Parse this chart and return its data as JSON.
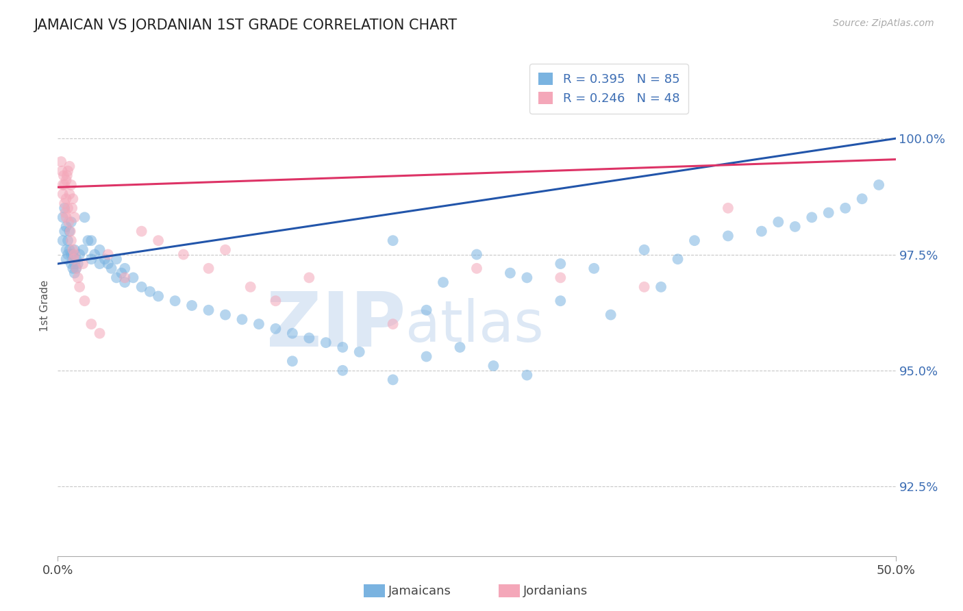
{
  "title": "JAMAICAN VS JORDANIAN 1ST GRADE CORRELATION CHART",
  "source": "Source: ZipAtlas.com",
  "ylabel_label": "1st Grade",
  "yticks": [
    92.5,
    95.0,
    97.5,
    100.0
  ],
  "xlim": [
    0.0,
    50.0
  ],
  "ylim": [
    91.0,
    101.8
  ],
  "legend_blue_label": "Jamaicans",
  "legend_pink_label": "Jordanians",
  "R_blue": 0.395,
  "N_blue": 85,
  "R_pink": 0.246,
  "N_pink": 48,
  "blue_color": "#7ab3e0",
  "pink_color": "#f4a7b9",
  "blue_line_color": "#2255aa",
  "pink_line_color": "#dd3366",
  "axis_label_color": "#3d6eb4",
  "background_color": "#ffffff",
  "watermark_color": "#dde8f5",
  "blue_line_x0": 0.0,
  "blue_line_y0": 97.3,
  "blue_line_x1": 50.0,
  "blue_line_y1": 100.0,
  "pink_line_x0": 0.0,
  "pink_line_y0": 98.95,
  "pink_line_x1": 50.0,
  "pink_line_y1": 99.55,
  "blue_x": [
    0.3,
    0.3,
    0.4,
    0.4,
    0.5,
    0.5,
    0.5,
    0.6,
    0.6,
    0.7,
    0.7,
    0.8,
    0.8,
    0.8,
    0.9,
    0.9,
    1.0,
    1.0,
    1.0,
    1.1,
    1.1,
    1.2,
    1.3,
    1.5,
    1.6,
    1.8,
    2.0,
    2.0,
    2.2,
    2.5,
    2.5,
    2.8,
    3.0,
    3.2,
    3.5,
    3.5,
    3.8,
    4.0,
    4.0,
    4.5,
    5.0,
    5.5,
    6.0,
    7.0,
    8.0,
    9.0,
    10.0,
    11.0,
    12.0,
    13.0,
    14.0,
    15.0,
    16.0,
    17.0,
    18.0,
    20.0,
    22.0,
    23.0,
    25.0,
    27.0,
    28.0,
    30.0,
    32.0,
    35.0,
    37.0,
    38.0,
    40.0,
    42.0,
    43.0,
    44.0,
    45.0,
    46.0,
    47.0,
    48.0,
    49.0,
    14.0,
    17.0,
    20.0,
    22.0,
    24.0,
    26.0,
    28.0,
    30.0,
    33.0,
    36.0
  ],
  "blue_y": [
    97.8,
    98.3,
    98.0,
    98.5,
    97.6,
    98.1,
    97.4,
    97.8,
    97.5,
    97.6,
    98.0,
    97.5,
    98.2,
    97.3,
    97.2,
    97.5,
    97.3,
    97.6,
    97.1,
    97.4,
    97.2,
    97.3,
    97.5,
    97.6,
    98.3,
    97.8,
    97.4,
    97.8,
    97.5,
    97.6,
    97.3,
    97.4,
    97.3,
    97.2,
    97.0,
    97.4,
    97.1,
    96.9,
    97.2,
    97.0,
    96.8,
    96.7,
    96.6,
    96.5,
    96.4,
    96.3,
    96.2,
    96.1,
    96.0,
    95.9,
    95.8,
    95.7,
    95.6,
    95.5,
    95.4,
    97.8,
    96.3,
    96.9,
    97.5,
    97.1,
    97.0,
    97.3,
    97.2,
    97.6,
    97.4,
    97.8,
    97.9,
    98.0,
    98.2,
    98.1,
    98.3,
    98.4,
    98.5,
    98.7,
    99.0,
    95.2,
    95.0,
    94.8,
    95.3,
    95.5,
    95.1,
    94.9,
    96.5,
    96.2,
    96.8
  ],
  "pink_x": [
    0.2,
    0.25,
    0.3,
    0.3,
    0.35,
    0.4,
    0.4,
    0.45,
    0.5,
    0.5,
    0.5,
    0.55,
    0.6,
    0.6,
    0.65,
    0.7,
    0.7,
    0.75,
    0.8,
    0.8,
    0.85,
    0.9,
    0.9,
    0.95,
    1.0,
    1.0,
    1.1,
    1.2,
    1.3,
    1.5,
    1.6,
    2.0,
    2.5,
    3.0,
    4.0,
    5.0,
    6.0,
    7.5,
    9.0,
    10.0,
    11.5,
    13.0,
    15.0,
    20.0,
    25.0,
    30.0,
    35.0,
    40.0
  ],
  "pink_y": [
    99.5,
    99.3,
    99.0,
    98.8,
    99.2,
    98.6,
    99.0,
    98.4,
    99.1,
    98.7,
    98.3,
    99.2,
    98.5,
    99.3,
    98.2,
    98.8,
    99.4,
    98.0,
    97.8,
    99.0,
    98.5,
    97.6,
    98.7,
    97.4,
    98.3,
    97.5,
    97.2,
    97.0,
    96.8,
    97.3,
    96.5,
    96.0,
    95.8,
    97.5,
    97.0,
    98.0,
    97.8,
    97.5,
    97.2,
    97.6,
    96.8,
    96.5,
    97.0,
    96.0,
    97.2,
    97.0,
    96.8,
    98.5
  ]
}
